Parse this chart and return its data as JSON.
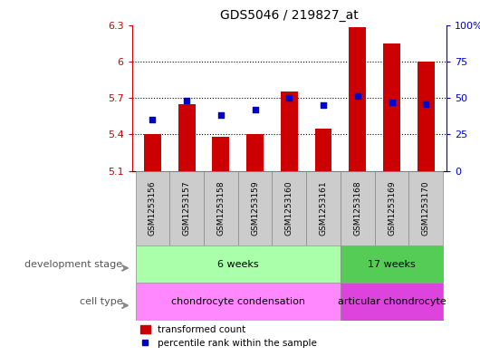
{
  "title": "GDS5046 / 219827_at",
  "samples": [
    "GSM1253156",
    "GSM1253157",
    "GSM1253158",
    "GSM1253159",
    "GSM1253160",
    "GSM1253161",
    "GSM1253168",
    "GSM1253169",
    "GSM1253170"
  ],
  "bar_values": [
    5.4,
    5.65,
    5.38,
    5.4,
    5.75,
    5.45,
    6.28,
    6.15,
    6.0
  ],
  "bar_base": 5.1,
  "dot_percentile": [
    35,
    48,
    38,
    42,
    50,
    45,
    51,
    47,
    46
  ],
  "ylim_left": [
    5.1,
    6.3
  ],
  "ylim_right": [
    0,
    100
  ],
  "yticks_left": [
    5.1,
    5.4,
    5.7,
    6.0,
    6.3
  ],
  "yticks_left_labels": [
    "5.1",
    "5.4",
    "5.7",
    "6",
    "6.3"
  ],
  "yticks_right": [
    0,
    25,
    50,
    75,
    100
  ],
  "yticks_right_labels": [
    "0",
    "25",
    "50",
    "75",
    "100%"
  ],
  "hlines": [
    5.4,
    5.7,
    6.0
  ],
  "bar_color": "#cc0000",
  "dot_color": "#0000cc",
  "bar_width": 0.5,
  "groups": [
    {
      "label": "6 weeks",
      "start": 0,
      "end": 5,
      "color": "#aaffaa"
    },
    {
      "label": "17 weeks",
      "start": 6,
      "end": 8,
      "color": "#55cc55"
    }
  ],
  "cell_types": [
    {
      "label": "chondrocyte condensation",
      "start": 0,
      "end": 5,
      "color": "#ff88ff"
    },
    {
      "label": "articular chondrocyte",
      "start": 6,
      "end": 8,
      "color": "#dd44dd"
    }
  ],
  "dev_stage_label": "development stage",
  "cell_type_label": "cell type",
  "legend_bar_label": "transformed count",
  "legend_dot_label": "percentile rank within the sample",
  "background_color": "#ffffff",
  "axis_label_color_left": "#cc0000",
  "axis_label_color_right": "#0000cc",
  "sample_box_color": "#cccccc",
  "fig_width": 5.3,
  "fig_height": 3.93,
  "fig_dpi": 100
}
